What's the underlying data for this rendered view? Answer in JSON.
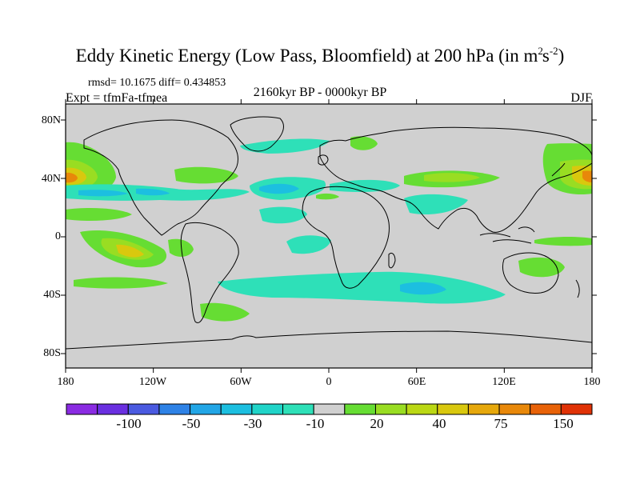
{
  "title": {
    "main": "Eddy Kinetic Energy (Low Pass, Bloomfield) at 200 hPa (in m",
    "sup1": "2",
    "mid": "s",
    "sup2": "-2",
    "end": ")"
  },
  "stats": "rmsd= 10.1675 diff= 0.434853",
  "expt": "Expt = tfmFa-tfmea",
  "period": "2160kyr BP - 0000kyr BP",
  "season": "DJF",
  "y_ticks": [
    "80N",
    "40N",
    "0",
    "40S",
    "80S"
  ],
  "x_ticks": [
    "180",
    "120W",
    "60W",
    "0",
    "60E",
    "120E",
    "180"
  ],
  "colorbar": {
    "labels": [
      "-100",
      "-50",
      "-30",
      "-10",
      "20",
      "40",
      "75",
      "150"
    ],
    "colors": [
      "#8a2be2",
      "#6a2fe0",
      "#4a5ae0",
      "#2e82e6",
      "#22a6e6",
      "#1cbfe0",
      "#20d4c8",
      "#2ee0b8",
      "#d0d0d0",
      "#66dd33",
      "#99dd22",
      "#bbd814",
      "#d9c80e",
      "#e6a80c",
      "#e8880a",
      "#e86208",
      "#e03206"
    ]
  },
  "map": {
    "land_color": "#d0d0d0",
    "positive_colors": [
      "#66dd33",
      "#99dd22",
      "#d9c80e",
      "#e8880a"
    ],
    "negative_colors": [
      "#2ee0b8",
      "#1cbfe0"
    ]
  }
}
